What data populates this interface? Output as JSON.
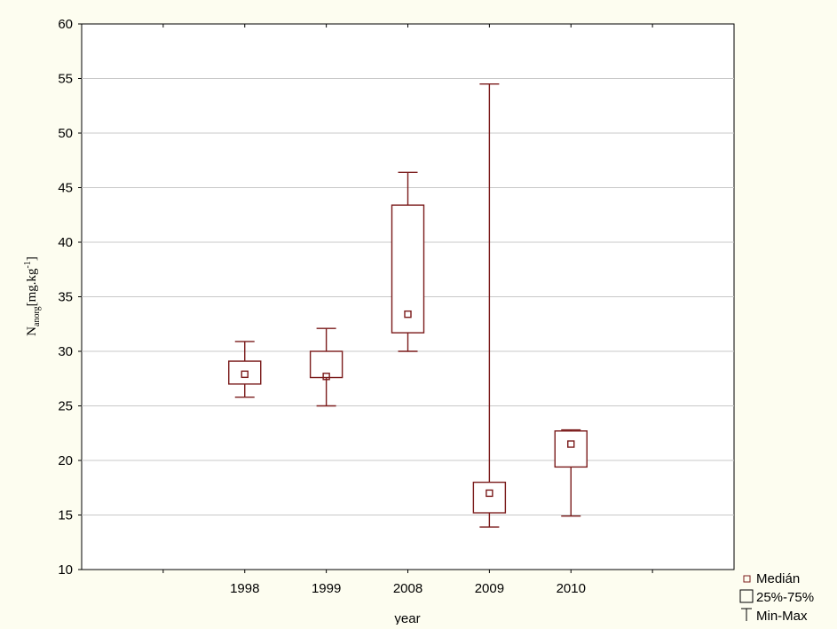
{
  "chart_data": {
    "type": "box",
    "xlabel": "year",
    "ylabel": {
      "main": "N",
      "sub": "anorg",
      "unit_prefix": "[mg.kg",
      "unit_exp": "-1",
      "unit_suffix": "]"
    },
    "ylim": [
      10,
      60
    ],
    "yticks": [
      10,
      15,
      20,
      25,
      30,
      35,
      40,
      45,
      50,
      55,
      60
    ],
    "grid": true,
    "categories": [
      "1998",
      "1999",
      "2008",
      "2009",
      "2010"
    ],
    "boxes": [
      {
        "category": "1998",
        "min": 25.8,
        "q1": 27.0,
        "median": 27.9,
        "q3": 29.1,
        "max": 30.9
      },
      {
        "category": "1999",
        "min": 25.0,
        "q1": 27.6,
        "median": 27.7,
        "q3": 30.0,
        "max": 32.1
      },
      {
        "category": "2008",
        "min": 30.0,
        "q1": 31.7,
        "median": 33.4,
        "q3": 43.4,
        "max": 46.4
      },
      {
        "category": "2009",
        "min": 13.9,
        "q1": 15.2,
        "median": 17.0,
        "q3": 18.0,
        "max": 54.5
      },
      {
        "category": "2010",
        "min": 14.9,
        "q1": 19.4,
        "median": 21.5,
        "q3": 22.7,
        "max": 22.8
      }
    ],
    "legend": {
      "position": "bottom-right",
      "entries": [
        {
          "symbol": "median",
          "label": "Medián"
        },
        {
          "symbol": "box",
          "label": "25%-75%"
        },
        {
          "symbol": "whisker",
          "label": "Min-Max"
        }
      ]
    },
    "colors": {
      "box": "#7a1a1a",
      "grid": "#c8c8c8",
      "axis": "#000000",
      "plot_bg": "#ffffff",
      "page_bg": "#fdfdf0"
    }
  }
}
